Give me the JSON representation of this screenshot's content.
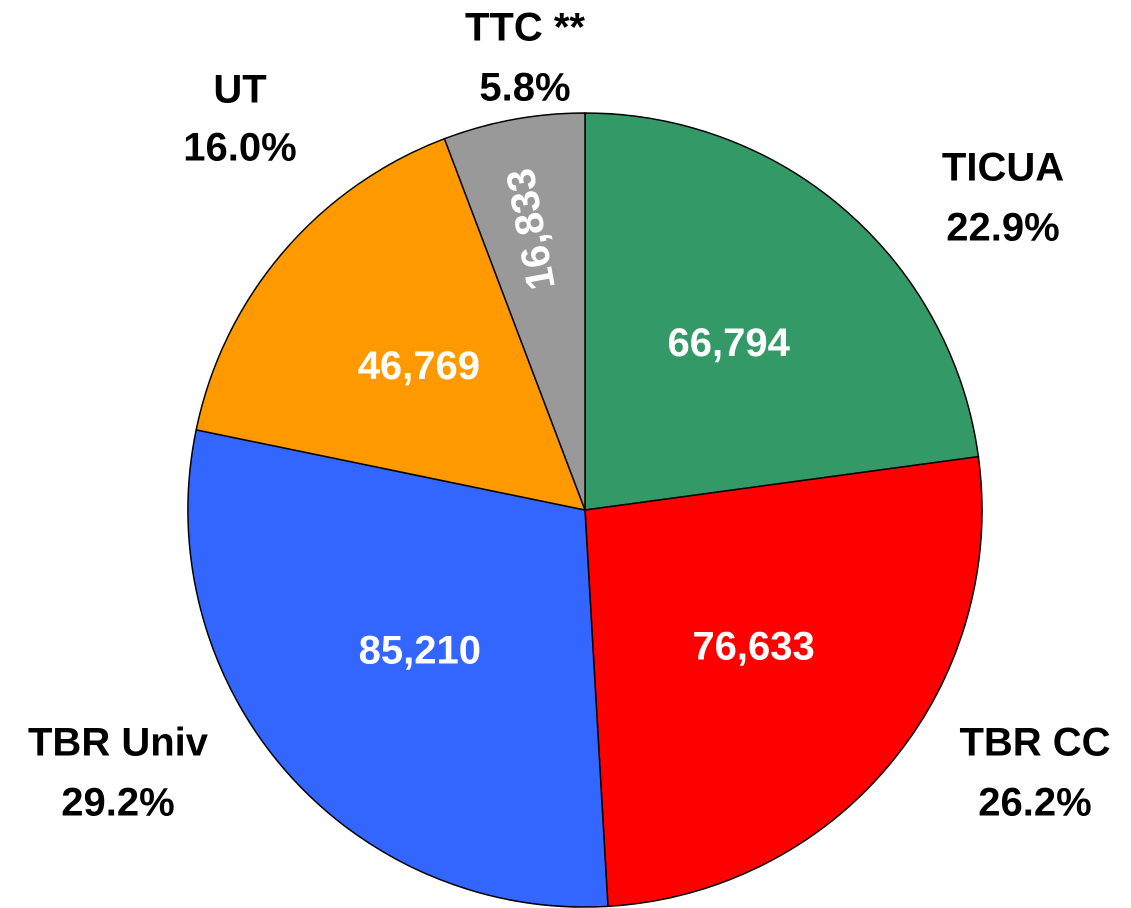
{
  "chart_data": {
    "type": "pie",
    "categories": [
      "TICUA",
      "TBR CC",
      "TBR Univ",
      "UT",
      "TTC **"
    ],
    "values": [
      66794,
      76633,
      85210,
      46769,
      16833
    ],
    "value_labels": [
      "66,794",
      "76,633",
      "85,210",
      "46,769",
      "16,833"
    ],
    "percents": [
      22.9,
      26.2,
      29.2,
      16.0,
      5.8
    ],
    "percent_labels": [
      "22.9%",
      "26.2%",
      "29.2%",
      "16.0%",
      "5.8%"
    ],
    "colors": [
      "#339966",
      "#ff0000",
      "#3366ff",
      "#ff9900",
      "#999999"
    ]
  }
}
